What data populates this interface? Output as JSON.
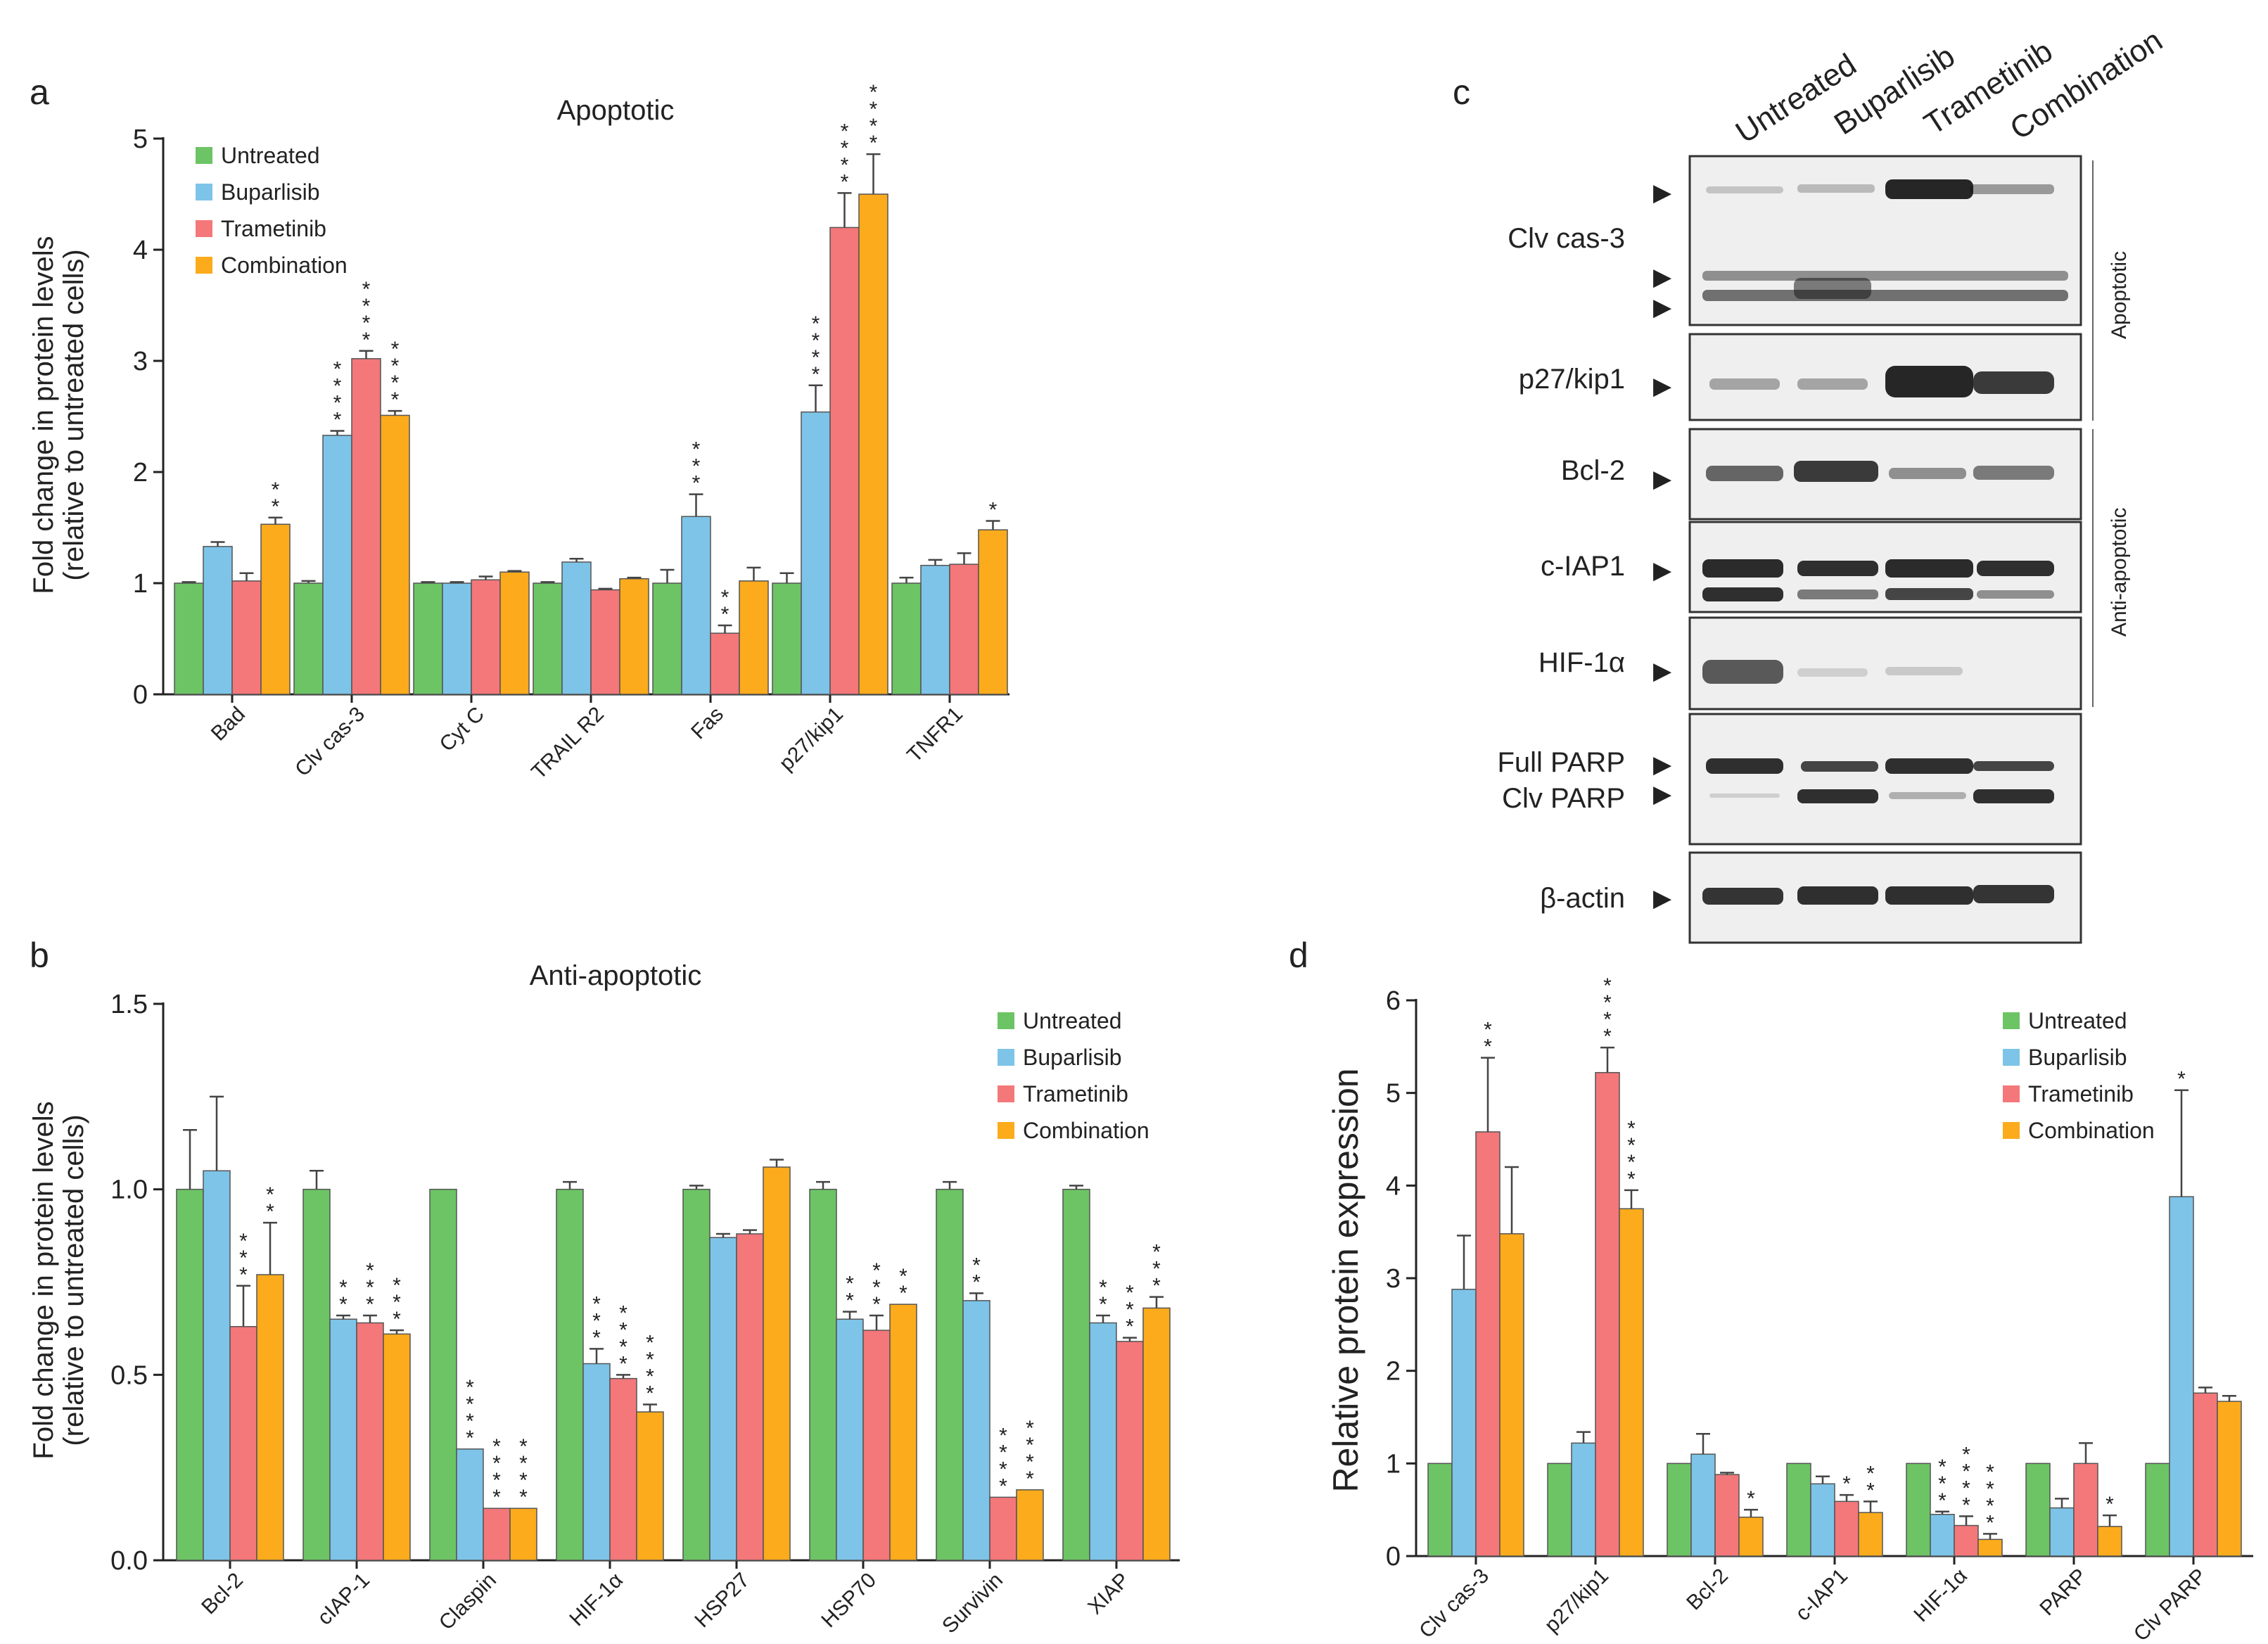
{
  "panel_labels": {
    "a": "a",
    "b": "b",
    "c": "c",
    "d": "d"
  },
  "colors": {
    "untreated": "#6cc464",
    "buparlisib": "#7dc4e8",
    "trametinib": "#f4777a",
    "combination": "#fbab1c",
    "axis": "#222222",
    "blot_bg": "#efefef",
    "band": "#1a1a1a"
  },
  "chart_data": [
    {
      "id": "a",
      "type": "bar",
      "title": "Apoptotic",
      "ylabel": "Fold change in protein levels",
      "ylabel2": "(relative to untreated cells)",
      "xlabel": "",
      "ylim": [
        0,
        5
      ],
      "yticks": [
        "0",
        "1",
        "2",
        "3",
        "4",
        "5"
      ],
      "categories": [
        "Bad",
        "Clv cas-3",
        "Cyt C",
        "TRAIL R2",
        "Fas",
        "p27/kip1",
        "TNFR1"
      ],
      "series": [
        {
          "name": "Untreated",
          "values": [
            1.0,
            1.0,
            1.0,
            1.0,
            1.0,
            1.0,
            1.0
          ],
          "errors": [
            0.01,
            0.02,
            0.01,
            0.01,
            0.12,
            0.09,
            0.05
          ],
          "stars": [
            0,
            0,
            0,
            0,
            0,
            0,
            0
          ]
        },
        {
          "name": "Buparlisib",
          "values": [
            1.33,
            2.33,
            1.0,
            1.19,
            1.6,
            2.54,
            1.16
          ],
          "errors": [
            0.04,
            0.04,
            0.01,
            0.03,
            0.2,
            0.24,
            0.05
          ],
          "stars": [
            0,
            4,
            0,
            0,
            3,
            4,
            0
          ]
        },
        {
          "name": "Trametinib",
          "values": [
            1.02,
            3.02,
            1.03,
            0.94,
            0.55,
            4.2,
            1.17
          ],
          "errors": [
            0.07,
            0.07,
            0.03,
            0.01,
            0.07,
            0.31,
            0.1
          ],
          "stars": [
            0,
            4,
            0,
            0,
            2,
            4,
            0
          ]
        },
        {
          "name": "Combination",
          "values": [
            1.53,
            2.51,
            1.1,
            1.04,
            1.02,
            4.5,
            1.48
          ],
          "errors": [
            0.06,
            0.04,
            0.01,
            0.01,
            0.12,
            0.36,
            0.08
          ],
          "stars": [
            2,
            4,
            0,
            0,
            0,
            4,
            1
          ]
        }
      ],
      "legend": [
        "Untreated",
        "Buparlisib",
        "Trametinib",
        "Combination"
      ],
      "legend_position": "top-left"
    },
    {
      "id": "b",
      "type": "bar",
      "title": "Anti-apoptotic",
      "ylabel": "Fold change in protein levels",
      "ylabel2": "(relative to untreated cells)",
      "xlabel": "",
      "ylim": [
        0,
        1.5
      ],
      "yticks": [
        "0.0",
        "0.5",
        "1.0",
        "1.5"
      ],
      "categories": [
        "Bcl-2",
        "cIAP-1",
        "Claspin",
        "HIF-1α",
        "HSP27",
        "HSP70",
        "Survivin",
        "XIAP"
      ],
      "series": [
        {
          "name": "Untreated",
          "values": [
            1.0,
            1.0,
            1.0,
            1.0,
            1.0,
            1.0,
            1.0,
            1.0
          ],
          "errors": [
            0.16,
            0.05,
            0.0,
            0.02,
            0.01,
            0.02,
            0.02,
            0.01
          ],
          "stars": [
            0,
            0,
            0,
            0,
            0,
            0,
            0,
            0
          ]
        },
        {
          "name": "Buparlisib",
          "values": [
            1.05,
            0.65,
            0.3,
            0.53,
            0.87,
            0.65,
            0.7,
            0.64
          ],
          "errors": [
            0.2,
            0.01,
            0.0,
            0.04,
            0.01,
            0.02,
            0.02,
            0.02
          ],
          "stars": [
            0,
            2,
            4,
            3,
            0,
            2,
            2,
            2
          ]
        },
        {
          "name": "Trametinib",
          "values": [
            0.63,
            0.64,
            0.14,
            0.49,
            0.88,
            0.62,
            0.17,
            0.59
          ],
          "errors": [
            0.11,
            0.02,
            0.0,
            0.01,
            0.01,
            0.04,
            0.0,
            0.01
          ],
          "stars": [
            3,
            3,
            4,
            4,
            0,
            3,
            4,
            3
          ]
        },
        {
          "name": "Combination",
          "values": [
            0.77,
            0.61,
            0.14,
            0.4,
            1.06,
            0.69,
            0.19,
            0.68
          ],
          "errors": [
            0.14,
            0.01,
            0.0,
            0.02,
            0.02,
            0.0,
            0.0,
            0.03
          ],
          "stars": [
            2,
            3,
            4,
            4,
            0,
            2,
            4,
            3
          ]
        }
      ],
      "legend": [
        "Untreated",
        "Buparlisib",
        "Trametinib",
        "Combination"
      ],
      "legend_position": "top-right"
    },
    {
      "id": "d",
      "type": "bar",
      "title": "",
      "ylabel": "Relative protein expression",
      "ylabel2": "",
      "xlabel": "",
      "ylim": [
        0,
        6
      ],
      "yticks": [
        "0",
        "1",
        "2",
        "3",
        "4",
        "5",
        "6"
      ],
      "categories": [
        "Clv cas-3",
        "p27/kip1",
        "Bcl-2",
        "c-IAP1",
        "HIF-1α",
        "PARP",
        "Clv PARP"
      ],
      "series": [
        {
          "name": "Untreated",
          "values": [
            1.0,
            1.0,
            1.0,
            1.0,
            1.0,
            1.0,
            1.0
          ],
          "errors": [
            0.0,
            0.0,
            0.0,
            0.0,
            0.0,
            0.0,
            0.0
          ],
          "stars": [
            0,
            0,
            0,
            0,
            0,
            0,
            0
          ]
        },
        {
          "name": "Buparlisib",
          "values": [
            2.88,
            1.22,
            1.1,
            0.78,
            0.45,
            0.52,
            3.88
          ],
          "errors": [
            0.58,
            0.12,
            0.22,
            0.08,
            0.03,
            0.1,
            1.15
          ],
          "stars": [
            0,
            0,
            0,
            0,
            3,
            0,
            1
          ]
        },
        {
          "name": "Trametinib",
          "values": [
            4.58,
            5.22,
            0.88,
            0.59,
            0.33,
            1.0,
            1.76
          ],
          "errors": [
            0.8,
            0.27,
            0.02,
            0.07,
            0.1,
            0.22,
            0.06
          ],
          "stars": [
            2,
            4,
            0,
            1,
            4,
            0,
            0
          ]
        },
        {
          "name": "Combination",
          "values": [
            3.48,
            3.75,
            0.42,
            0.47,
            0.18,
            0.32,
            1.67
          ],
          "errors": [
            0.72,
            0.2,
            0.08,
            0.12,
            0.06,
            0.12,
            0.06
          ],
          "stars": [
            0,
            4,
            1,
            2,
            4,
            1,
            0
          ]
        }
      ],
      "legend": [
        "Untreated",
        "Buparlisib",
        "Trametinib",
        "Combination"
      ],
      "legend_position": "top-right"
    }
  ],
  "western_blot": {
    "lanes": [
      "Untreated",
      "Buparlisib",
      "Trametinib",
      "Combination"
    ],
    "groups": [
      "Apoptotic",
      "Anti-apoptotic"
    ],
    "proteins": [
      "Clv cas-3",
      "p27/kip1",
      "Bcl-2",
      "c-IAP1",
      "HIF-1α",
      "Full PARP",
      "Clv PARP",
      "β-actin"
    ],
    "arrow_glyph": "▶"
  }
}
